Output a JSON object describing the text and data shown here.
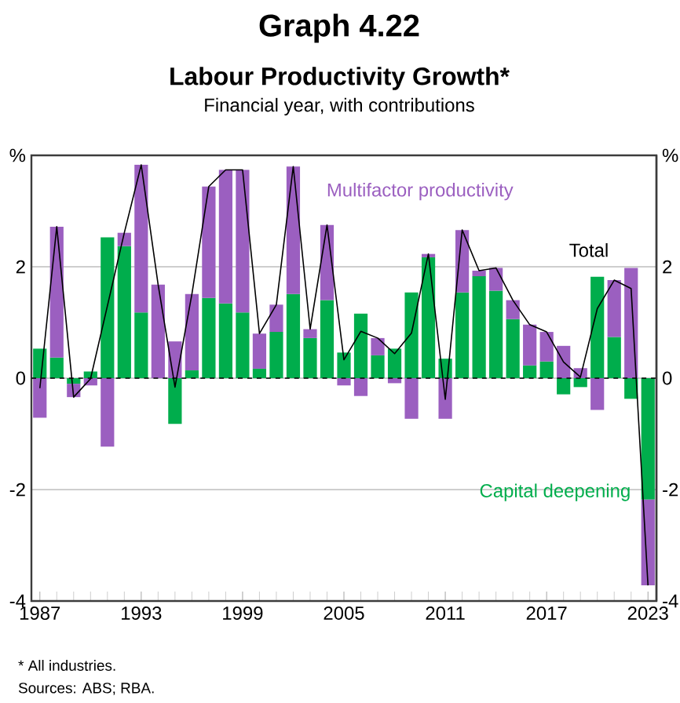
{
  "chart_data": {
    "type": "bar",
    "stacked": true,
    "title": "Graph 4.22",
    "subtitle": "Labour Productivity Growth*",
    "annotations": [
      "Financial year, with contributions",
      "* All industries.",
      "Sources: ABS; RBA."
    ],
    "x": [
      1987,
      1988,
      1989,
      1990,
      1991,
      1992,
      1993,
      1994,
      1995,
      1996,
      1997,
      1998,
      1999,
      2000,
      2001,
      2002,
      2003,
      2004,
      2005,
      2006,
      2007,
      2008,
      2009,
      2010,
      2011,
      2012,
      2013,
      2014,
      2015,
      2016,
      2017,
      2018,
      2019,
      2020,
      2021,
      2022,
      2023
    ],
    "series": [
      {
        "name": "Capital deepening",
        "color": "#00ad4c",
        "values": [
          0.53,
          0.37,
          -0.1,
          0.12,
          2.53,
          2.37,
          1.18,
          0,
          -0.82,
          0.14,
          1.44,
          1.34,
          1.18,
          0.17,
          0.83,
          1.51,
          0.72,
          1.4,
          0.46,
          1.16,
          0.41,
          0.53,
          1.54,
          2.17,
          0.35,
          1.54,
          1.83,
          1.57,
          1.06,
          0.23,
          0.3,
          -0.29,
          -0.16,
          1.82,
          0.74,
          -0.37,
          -2.18
        ]
      },
      {
        "name": "Multifactor productivity",
        "color": "#9b5fc0",
        "values": [
          -0.71,
          2.35,
          -0.24,
          -0.13,
          -1.23,
          0.24,
          2.65,
          1.68,
          0.66,
          1.37,
          2.0,
          2.4,
          2.56,
          0.63,
          0.49,
          2.29,
          0.16,
          1.35,
          -0.13,
          -0.32,
          0.31,
          -0.09,
          -0.73,
          0.06,
          -0.73,
          1.12,
          0.1,
          0.41,
          0.34,
          0.73,
          0.53,
          0.58,
          0.18,
          -0.57,
          1.02,
          1.98,
          -1.54
        ]
      },
      {
        "name": "Total",
        "type": "line",
        "color": "#000000",
        "values": [
          -0.18,
          2.72,
          -0.34,
          -0.01,
          1.3,
          2.61,
          3.83,
          1.68,
          -0.16,
          1.51,
          3.44,
          3.74,
          3.74,
          0.8,
          1.32,
          3.8,
          0.88,
          2.75,
          0.33,
          0.84,
          0.72,
          0.44,
          0.81,
          2.23,
          -0.38,
          2.66,
          1.93,
          1.98,
          1.4,
          0.96,
          0.83,
          0.29,
          0.02,
          1.25,
          1.76,
          1.61,
          -3.72
        ]
      }
    ],
    "xlim": [
      1986.5,
      2023.5
    ],
    "xticks": [
      1987,
      1993,
      1999,
      2005,
      2011,
      2017,
      2023
    ],
    "ylim": [
      -4,
      4
    ],
    "yticks": [
      -4,
      -2,
      0,
      2,
      {
        "value": 4,
        "label": "%"
      }
    ],
    "y2lim": [
      -4,
      4
    ],
    "y2ticks": [
      -4,
      -2,
      0,
      2,
      {
        "value": 4,
        "label": "%"
      }
    ],
    "ref_lines": [
      {
        "axis": "y",
        "value": 0,
        "color": "#000000",
        "line_style": "dashed"
      }
    ],
    "grid": "y"
  }
}
